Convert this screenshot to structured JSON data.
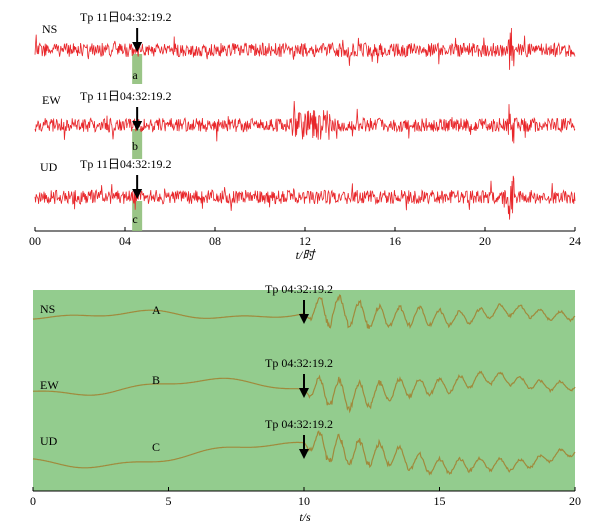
{
  "panels": [
    {
      "type": "waveform",
      "xlabel": "t/时",
      "xlim": [
        0,
        24
      ],
      "xticks": [
        {
          "value": 0,
          "label": "00"
        },
        {
          "value": 4,
          "label": "04"
        },
        {
          "value": 8,
          "label": "08"
        },
        12,
        16,
        20,
        24
      ],
      "color": "#e8262a",
      "traces": [
        {
          "name": "NS",
          "annotation": "Tp 11日04:32:19.2",
          "marker": "a",
          "onset": 4.54
        },
        {
          "name": "EW",
          "annotation": "Tp 11日04:32:19.2",
          "marker": "b",
          "onset": 4.54
        },
        {
          "name": "UD",
          "annotation": "Tp 11日04:32:19.2",
          "marker": "c",
          "onset": 4.54
        }
      ]
    },
    {
      "type": "waveform",
      "xlabel": "t/s",
      "xlim": [
        0,
        20
      ],
      "xticks": [
        0,
        5,
        10,
        15,
        20
      ],
      "color": "#a08a3c",
      "background": "#93cc8e",
      "traces": [
        {
          "name": "NS",
          "annotation": "Tp 04:32:19.2",
          "marker": "A",
          "onset": 10
        },
        {
          "name": "EW",
          "annotation": "Tp 04:32:19.2",
          "marker": "B",
          "onset": 10
        },
        {
          "name": "UD",
          "annotation": "Tp 04:32:19.2",
          "marker": "C",
          "onset": 10
        }
      ]
    }
  ]
}
